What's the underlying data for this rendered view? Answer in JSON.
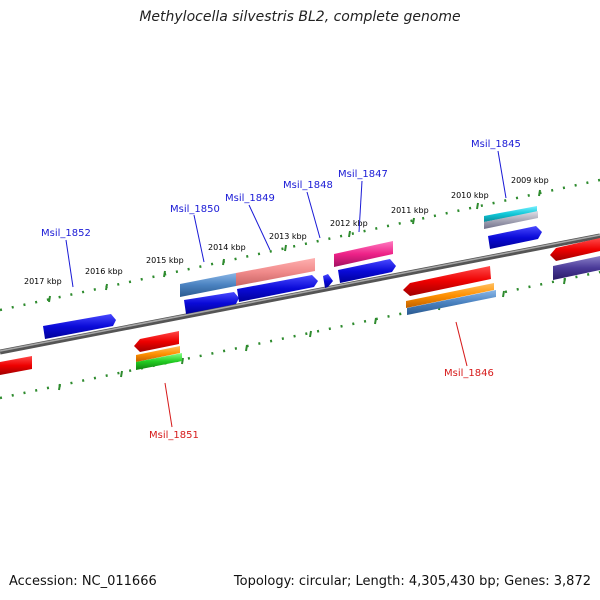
{
  "title": "Methylocella silvestris BL2, complete genome",
  "footer": {
    "accession": "Accession: NC_011666",
    "summary": "Topology: circular; Length: 4,305,430 bp; Genes: 3,872"
  },
  "scale_labels": {
    "upper": [
      "2017 kbp",
      "2016 kbp",
      "2015 kbp",
      "2014 kbp",
      "2013 kbp",
      "2012 kbp",
      "2011 kbp",
      "2010 kbp",
      "2009 kbp"
    ]
  },
  "genes": {
    "Msil_1845": "Msil_1845",
    "Msil_1846": "Msil_1846",
    "Msil_1847": "Msil_1847",
    "Msil_1848": "Msil_1848",
    "Msil_1849": "Msil_1849",
    "Msil_1850": "Msil_1850",
    "Msil_1851": "Msil_1851",
    "Msil_1852": "Msil_1852"
  },
  "colors": {
    "forward_label": "#1a1ad6",
    "reverse_label": "#d61a1a",
    "backbone": "#7a7a7a",
    "scale_ticks": "#2e8b2e"
  }
}
